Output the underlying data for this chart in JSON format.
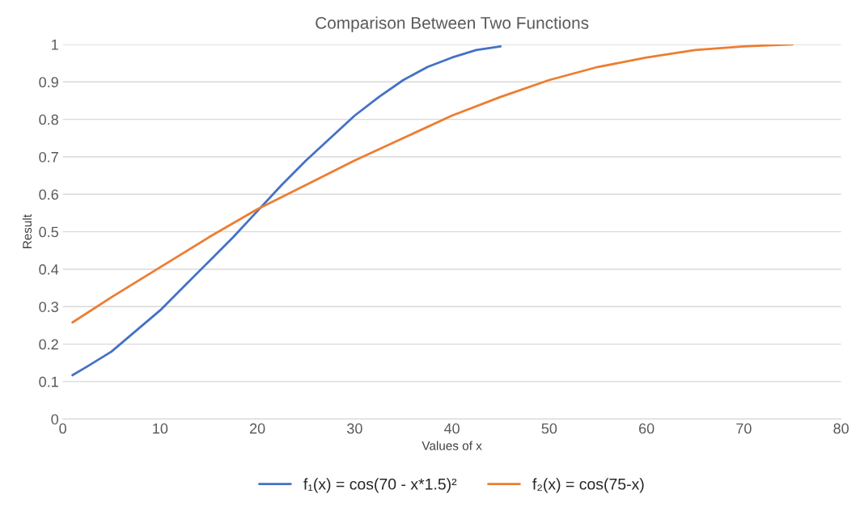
{
  "chart_data": {
    "type": "line",
    "title": "Comparison Between Two Functions",
    "xlabel": "Values of x",
    "ylabel": "Result",
    "xlim": [
      0,
      80
    ],
    "xticks": [
      0,
      10,
      20,
      30,
      40,
      50,
      60,
      70,
      80
    ],
    "ylim": [
      0,
      1
    ],
    "yticks": [
      0,
      0.1,
      0.2,
      0.3,
      0.4,
      0.5,
      0.6,
      0.7,
      0.8,
      0.9,
      1
    ],
    "grid": "y",
    "legend": "bottom",
    "marker": "none",
    "line_style": "solid",
    "series": [
      {
        "name": "f₁(x) = cos(70 - x*1.5)²",
        "color": "#4472c4",
        "x": [
          1,
          2.5,
          5,
          7.5,
          10,
          12.5,
          15,
          17.5,
          20,
          22.5,
          25,
          27.5,
          30,
          32.5,
          35,
          37.5,
          40,
          42.5,
          45
        ],
        "values": [
          0.117,
          0.14,
          0.18,
          0.235,
          0.29,
          0.355,
          0.42,
          0.485,
          0.555,
          0.625,
          0.69,
          0.75,
          0.81,
          0.86,
          0.905,
          0.94,
          0.965,
          0.985,
          0.995
        ]
      },
      {
        "name": "f₂(x) = cos(75-x)",
        "color": "#ed7d31",
        "x": [
          1,
          5,
          10,
          15,
          20,
          25,
          30,
          35,
          40,
          45,
          50,
          55,
          60,
          65,
          70,
          75
        ],
        "values": [
          0.258,
          0.325,
          0.405,
          0.485,
          0.56,
          0.625,
          0.69,
          0.75,
          0.81,
          0.86,
          0.905,
          0.94,
          0.965,
          0.985,
          0.995,
          1.0
        ]
      }
    ]
  }
}
